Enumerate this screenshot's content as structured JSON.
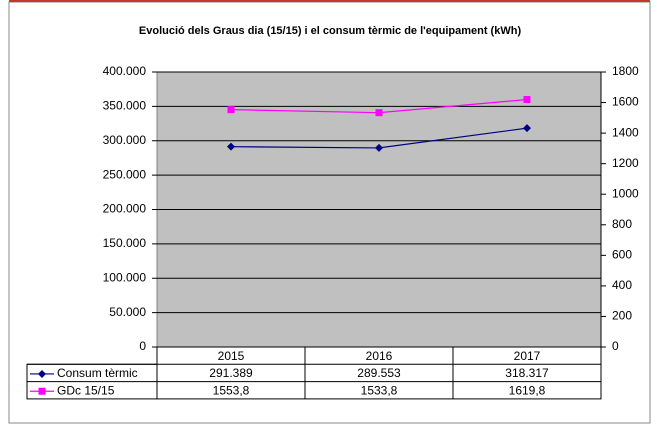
{
  "chart_data": {
    "type": "line",
    "title": "Evolució dels Graus dia (15/15)  i el consum  tèrmic de l'equipament (kWh)",
    "categories": [
      "2015",
      "2016",
      "2017"
    ],
    "series": [
      {
        "name": "Consum tèrmic",
        "color": "#000080",
        "values": [
          291389,
          289553,
          318317
        ],
        "value_labels": [
          "291.389",
          "289.553",
          "318.317"
        ]
      },
      {
        "name": "GDc 15/15",
        "color": "#ff00ff",
        "axis": "y2",
        "values": [
          1553.8,
          1533.8,
          1619.8
        ],
        "value_labels": [
          "1553,8",
          "1533,8",
          "1619,8"
        ]
      }
    ],
    "ylim": [
      0,
      400000
    ],
    "yticks": [
      0,
      {
        "value": 50000,
        "label": "50.000"
      },
      {
        "value": 100000,
        "label": "100.000"
      },
      {
        "value": 150000,
        "label": "150.000"
      },
      {
        "value": 200000,
        "label": "200.000"
      },
      {
        "value": 250000,
        "label": "250.000"
      },
      {
        "value": 300000,
        "label": "300.000"
      },
      {
        "value": 350000,
        "label": "350.000"
      },
      {
        "value": 400000,
        "label": "400.000"
      }
    ],
    "y2lim": [
      0,
      1800
    ],
    "y2ticks": [
      0,
      200,
      400,
      600,
      800,
      1000,
      1200,
      1400,
      1600,
      1800
    ],
    "grid": true,
    "plot_background": "#c0c0c0"
  }
}
